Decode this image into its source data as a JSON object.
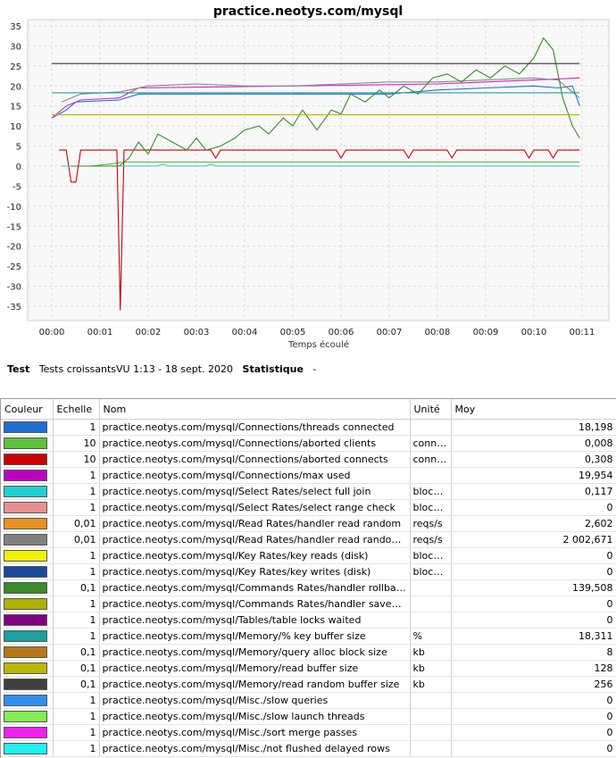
{
  "chart_data": {
    "type": "line",
    "title": "practice.neotys.com/mysql",
    "xlabel": "Temps écoulé",
    "ylabel": "",
    "x_ticks": [
      "00:00",
      "00:01",
      "00:02",
      "00:03",
      "00:04",
      "00:05",
      "00:06",
      "00:07",
      "00:08",
      "00:09",
      "00:10",
      "00:11"
    ],
    "xlim": [
      0,
      11
    ],
    "y_ticks": [
      35,
      30,
      25,
      20,
      15,
      10,
      5,
      0,
      -5,
      -10,
      -15,
      -20,
      -25,
      -30,
      -35
    ],
    "ylim": [
      -38,
      36
    ],
    "grid": true,
    "series": [
      {
        "name": "practice.neotys.com/mysql/Connections/threads connected",
        "color": "#1f6fd1",
        "points": [
          [
            0,
            12
          ],
          [
            0.3,
            14
          ],
          [
            0.5,
            16
          ],
          [
            1.4,
            16.5
          ],
          [
            1.8,
            18
          ],
          [
            5,
            18
          ],
          [
            7,
            18
          ],
          [
            7.5,
            18.5
          ],
          [
            8,
            19
          ],
          [
            9,
            19.5
          ],
          [
            10,
            20
          ],
          [
            10.5,
            19.5
          ],
          [
            10.8,
            20
          ],
          [
            10.95,
            15
          ]
        ]
      },
      {
        "name": "practice.neotys.com/mysql/Connections/aborted clients",
        "color": "#55bb33",
        "points": [
          [
            0.2,
            0
          ],
          [
            0.8,
            0
          ],
          [
            1.2,
            0.5
          ],
          [
            1.5,
            1
          ],
          [
            10.95,
            1
          ]
        ]
      },
      {
        "name": "practice.neotys.com/mysql/Connections/aborted connects",
        "color": "#cc0000",
        "points": [
          [
            0.15,
            4
          ],
          [
            0.3,
            4
          ],
          [
            0.4,
            -4
          ],
          [
            0.5,
            -4
          ],
          [
            0.6,
            4
          ],
          [
            1.35,
            4
          ],
          [
            1.42,
            -36
          ],
          [
            1.5,
            4
          ],
          [
            3.3,
            4
          ],
          [
            3.4,
            2
          ],
          [
            3.5,
            4
          ],
          [
            5.9,
            4
          ],
          [
            6.0,
            2
          ],
          [
            6.1,
            4
          ],
          [
            7.3,
            4
          ],
          [
            7.4,
            2
          ],
          [
            7.5,
            4
          ],
          [
            8.2,
            4
          ],
          [
            8.3,
            2
          ],
          [
            8.4,
            4
          ],
          [
            9.8,
            4
          ],
          [
            9.9,
            2
          ],
          [
            10,
            4
          ],
          [
            10.3,
            4
          ],
          [
            10.4,
            2
          ],
          [
            10.5,
            4
          ],
          [
            10.95,
            4
          ]
        ]
      },
      {
        "name": "practice.neotys.com/mysql/Connections/max used",
        "color": "#cc22cc",
        "points": [
          [
            0,
            12
          ],
          [
            0.3,
            15
          ],
          [
            0.6,
            16.5
          ],
          [
            1.4,
            17
          ],
          [
            1.8,
            19.5
          ],
          [
            5,
            20
          ],
          [
            8,
            20.5
          ],
          [
            9,
            21
          ],
          [
            10,
            21.5
          ],
          [
            10.95,
            22
          ]
        ]
      },
      {
        "name": "practice.neotys.com/mysql/Select Rates/select full join",
        "color": "#22cccc",
        "points": [
          [
            0.2,
            0
          ],
          [
            2.2,
            0
          ],
          [
            2.3,
            0.5
          ],
          [
            2.4,
            0
          ],
          [
            3.2,
            0
          ],
          [
            3.3,
            0.5
          ],
          [
            3.4,
            0
          ],
          [
            10.95,
            0
          ]
        ]
      },
      {
        "name": "practice.neotys.com/mysql/Read Rates/handler read random next",
        "color": "#888888",
        "points": [
          [
            0.2,
            16
          ],
          [
            0.6,
            18
          ],
          [
            1.4,
            18.5
          ],
          [
            1.6,
            19
          ],
          [
            2,
            20
          ],
          [
            3,
            20.5
          ],
          [
            4,
            20
          ],
          [
            5,
            20
          ],
          [
            6,
            20.5
          ],
          [
            7,
            21
          ],
          [
            8,
            21
          ],
          [
            9,
            21.5
          ],
          [
            10,
            22
          ],
          [
            10.5,
            21.5
          ],
          [
            10.95,
            17
          ]
        ]
      },
      {
        "name": "practice.neotys.com/mysql/Commands Rates/handler rollback",
        "color": "#3a8a2a",
        "points": [
          [
            0.4,
            0
          ],
          [
            1.4,
            0
          ],
          [
            1.6,
            2
          ],
          [
            1.8,
            6
          ],
          [
            2,
            3
          ],
          [
            2.2,
            8
          ],
          [
            2.5,
            6
          ],
          [
            2.8,
            4
          ],
          [
            3,
            7
          ],
          [
            3.2,
            4
          ],
          [
            3.5,
            5
          ],
          [
            3.8,
            7
          ],
          [
            4,
            9
          ],
          [
            4.3,
            10
          ],
          [
            4.5,
            8
          ],
          [
            4.8,
            12
          ],
          [
            5,
            10
          ],
          [
            5.2,
            14
          ],
          [
            5.5,
            9
          ],
          [
            5.8,
            14
          ],
          [
            6,
            13
          ],
          [
            6.2,
            18
          ],
          [
            6.5,
            16
          ],
          [
            6.8,
            19
          ],
          [
            7,
            17
          ],
          [
            7.3,
            20
          ],
          [
            7.6,
            18
          ],
          [
            7.9,
            22
          ],
          [
            8.2,
            23
          ],
          [
            8.5,
            21
          ],
          [
            8.8,
            24
          ],
          [
            9.1,
            22
          ],
          [
            9.4,
            25
          ],
          [
            9.7,
            23
          ],
          [
            10,
            27
          ],
          [
            10.2,
            32
          ],
          [
            10.4,
            29
          ],
          [
            10.6,
            17
          ],
          [
            10.8,
            10
          ],
          [
            10.95,
            7
          ]
        ]
      },
      {
        "name": "practice.neotys.com/mysql/Memory/% key buffer size",
        "color": "#1aa0a0",
        "points": [
          [
            0,
            18.3
          ],
          [
            10.95,
            18.3
          ]
        ]
      },
      {
        "name": "practice.neotys.com/mysql/Memory/read buffer size",
        "color": "#b8b800",
        "points": [
          [
            0,
            12.8
          ],
          [
            10.95,
            12.8
          ]
        ]
      },
      {
        "name": "practice.neotys.com/mysql/Memory/read random buffer size",
        "color": "#333333",
        "points": [
          [
            0,
            25.6
          ],
          [
            10.95,
            25.6
          ]
        ]
      }
    ]
  },
  "info": {
    "test_label": "Test",
    "test_value": "Tests croissantsVU 1:13 - 18 sept. 2020",
    "stat_label": "Statistique",
    "stat_value": "-"
  },
  "legend": {
    "headers": {
      "color": "Couleur",
      "scale": "Echelle",
      "name": "Nom",
      "unit": "Unité",
      "avg": "Moy"
    },
    "rows": [
      {
        "color": "#1f6fd1",
        "scale": "1",
        "name": "practice.neotys.com/mysql/Connections/threads connected",
        "unit": "",
        "avg": "18,198"
      },
      {
        "color": "#5fc03a",
        "scale": "10",
        "name": "practice.neotys.com/mysql/Connections/aborted clients",
        "unit": "conne...",
        "avg": "0,008"
      },
      {
        "color": "#cc0000",
        "scale": "10",
        "name": "practice.neotys.com/mysql/Connections/aborted connects",
        "unit": "conne...",
        "avg": "0,308"
      },
      {
        "color": "#c000c0",
        "scale": "1",
        "name": "practice.neotys.com/mysql/Connections/max used",
        "unit": "",
        "avg": "19,954"
      },
      {
        "color": "#20d0d0",
        "scale": "1",
        "name": "practice.neotys.com/mysql/Select Rates/select full join",
        "unit": "blocks/s",
        "avg": "0,117"
      },
      {
        "color": "#e89090",
        "scale": "1",
        "name": "practice.neotys.com/mysql/Select Rates/select range check",
        "unit": "blocks/s",
        "avg": "0"
      },
      {
        "color": "#e89020",
        "scale": "0,01",
        "name": "practice.neotys.com/mysql/Read Rates/handler read random",
        "unit": "reqs/s",
        "avg": "2,602"
      },
      {
        "color": "#808080",
        "scale": "0,01",
        "name": "practice.neotys.com/mysql/Read Rates/handler read random next",
        "unit": "reqs/s",
        "avg": "2 002,671"
      },
      {
        "color": "#f0f000",
        "scale": "1",
        "name": "practice.neotys.com/mysql/Key Rates/key reads (disk)",
        "unit": "blocks/s",
        "avg": "0"
      },
      {
        "color": "#1a4a9a",
        "scale": "1",
        "name": "practice.neotys.com/mysql/Key Rates/key writes (disk)",
        "unit": "blocks/s",
        "avg": "0"
      },
      {
        "color": "#3a8a2a",
        "scale": "0,1",
        "name": "practice.neotys.com/mysql/Commands Rates/handler rollback",
        "unit": "",
        "avg": "139,508"
      },
      {
        "color": "#b0b000",
        "scale": "1",
        "name": "practice.neotys.com/mysql/Commands Rates/handler savepoint rollback",
        "unit": "",
        "avg": "0"
      },
      {
        "color": "#800080",
        "scale": "1",
        "name": "practice.neotys.com/mysql/Tables/table locks waited",
        "unit": "",
        "avg": "0"
      },
      {
        "color": "#1aa0a0",
        "scale": "1",
        "name": "practice.neotys.com/mysql/Memory/% key buffer size",
        "unit": "%",
        "avg": "18,311"
      },
      {
        "color": "#b87818",
        "scale": "0,1",
        "name": "practice.neotys.com/mysql/Memory/query alloc block size",
        "unit": "kb",
        "avg": "8"
      },
      {
        "color": "#b8b800",
        "scale": "0,1",
        "name": "practice.neotys.com/mysql/Memory/read buffer size",
        "unit": "kb",
        "avg": "128"
      },
      {
        "color": "#404040",
        "scale": "0,1",
        "name": "practice.neotys.com/mysql/Memory/read random buffer size",
        "unit": "kb",
        "avg": "256"
      },
      {
        "color": "#3090f0",
        "scale": "1",
        "name": "practice.neotys.com/mysql/Misc./slow queries",
        "unit": "",
        "avg": "0"
      },
      {
        "color": "#80f050",
        "scale": "1",
        "name": "practice.neotys.com/mysql/Misc./slow launch threads",
        "unit": "",
        "avg": "0"
      },
      {
        "color": "#f020f0",
        "scale": "1",
        "name": "practice.neotys.com/mysql/Misc./sort merge passes",
        "unit": "",
        "avg": "0"
      },
      {
        "color": "#20f0f0",
        "scale": "1",
        "name": "practice.neotys.com/mysql/Misc./not flushed delayed rows",
        "unit": "",
        "avg": "0"
      }
    ]
  }
}
